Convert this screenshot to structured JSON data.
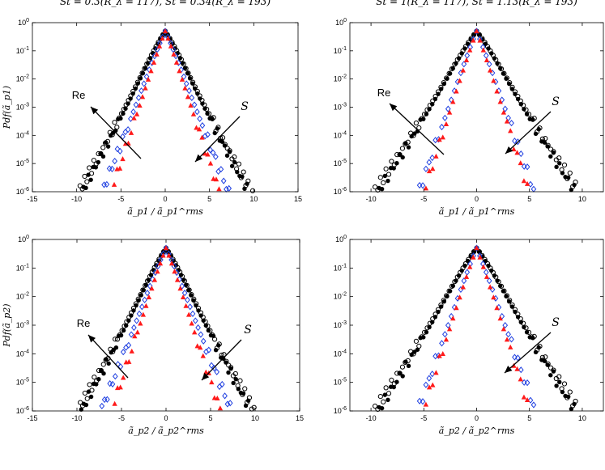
{
  "chart_data": [
    {
      "type": "scatter",
      "title": "St = 0.3(R_λ = 117), St = 0.34(R_λ = 193)",
      "xlabel": "ã_p1 / ã_p1^rms",
      "ylabel": "Pdf(ã_p1)",
      "xlim": [
        -15,
        15
      ],
      "ylim": [
        1e-06,
        1
      ],
      "yscale": "log",
      "xticks": [
        "-15",
        "-10",
        "-5",
        "0",
        "5",
        "10",
        "15"
      ],
      "yticks": [
        "10^-6",
        "10^-5",
        "10^-4",
        "10^-3",
        "10^-2",
        "10^-1",
        "10^0"
      ],
      "annotations": [
        "Re",
        "S"
      ],
      "series": [
        {
          "marker": "open-circle",
          "color": "#000000",
          "values_decay": 1.07,
          "xmax": 13.2
        },
        {
          "marker": "filled-circle",
          "color": "#000000",
          "values_decay": 1.12,
          "xmax": 11.6
        },
        {
          "marker": "open-diamond",
          "color": "#1f3fe0",
          "values_decay": 1.55,
          "xmax": 8.5
        },
        {
          "marker": "filled-triangle",
          "color": "#ff1a1a",
          "values_decay": 1.85,
          "xmax": 7.0
        }
      ]
    },
    {
      "type": "scatter",
      "title": "St = 1(R_λ = 117), St = 1.13(R_λ = 193)",
      "xlabel": "ã_p1 / ã_p1^rms",
      "ylabel": "",
      "xlim": [
        -12,
        12
      ],
      "ylim": [
        1e-06,
        1
      ],
      "yscale": "log",
      "xticks": [
        "-10",
        "-5",
        "0",
        "5",
        "10"
      ],
      "yticks": [
        "10^-6",
        "10^-5",
        "10^-4",
        "10^-3",
        "10^-2",
        "10^-1",
        "10^0"
      ],
      "annotations": [
        "Re",
        "S"
      ],
      "series": [
        {
          "marker": "open-circle",
          "color": "#000000",
          "values_decay": 1.08,
          "xmax": 11.3
        },
        {
          "marker": "filled-circle",
          "color": "#000000",
          "values_decay": 1.13,
          "xmax": 10.5
        },
        {
          "marker": "open-diamond",
          "color": "#1f3fe0",
          "values_decay": 2.1,
          "xmax": 6.0
        },
        {
          "marker": "filled-triangle",
          "color": "#ff1a1a",
          "values_decay": 2.35,
          "xmax": 5.5
        }
      ]
    },
    {
      "type": "scatter",
      "title": "",
      "xlabel": "ã_p2 / ã_p2^rms",
      "ylabel": "Pdf(ã_p2)",
      "xlim": [
        -15,
        15
      ],
      "ylim": [
        1e-06,
        1
      ],
      "yscale": "log",
      "xticks": [
        "-15",
        "-10",
        "-5",
        "0",
        "5",
        "10",
        "15"
      ],
      "yticks": [
        "10^-6",
        "10^-5",
        "10^-4",
        "10^-3",
        "10^-2",
        "10^-1",
        "10^0"
      ],
      "annotations": [
        "Re",
        "S"
      ],
      "series": [
        {
          "marker": "open-circle",
          "color": "#000000",
          "values_decay": 1.05,
          "xmax": 13.8
        },
        {
          "marker": "filled-circle",
          "color": "#000000",
          "values_decay": 1.1,
          "xmax": 12.3
        },
        {
          "marker": "open-diamond",
          "color": "#1f3fe0",
          "values_decay": 1.5,
          "xmax": 8.9
        },
        {
          "marker": "filled-triangle",
          "color": "#ff1a1a",
          "values_decay": 1.85,
          "xmax": 7.0
        }
      ]
    },
    {
      "type": "scatter",
      "title": "",
      "xlabel": "ã_p2 / ã_p2^rms",
      "ylabel": "",
      "xlim": [
        -12,
        12
      ],
      "ylim": [
        1e-06,
        1
      ],
      "yscale": "log",
      "xticks": [
        "-10",
        "-5",
        "0",
        "5",
        "10"
      ],
      "yticks": [
        "10^-6",
        "10^-5",
        "10^-4",
        "10^-3",
        "10^-2",
        "10^-1",
        "10^0"
      ],
      "annotations": [
        "S"
      ],
      "series": [
        {
          "marker": "open-circle",
          "color": "#000000",
          "values_decay": 1.08,
          "xmax": 11.3
        },
        {
          "marker": "filled-circle",
          "color": "#000000",
          "values_decay": 1.13,
          "xmax": 10.6
        },
        {
          "marker": "open-diamond",
          "color": "#1f3fe0",
          "values_decay": 2.05,
          "xmax": 6.3
        },
        {
          "marker": "filled-triangle",
          "color": "#ff1a1a",
          "values_decay": 2.3,
          "xmax": 5.9
        }
      ]
    }
  ]
}
